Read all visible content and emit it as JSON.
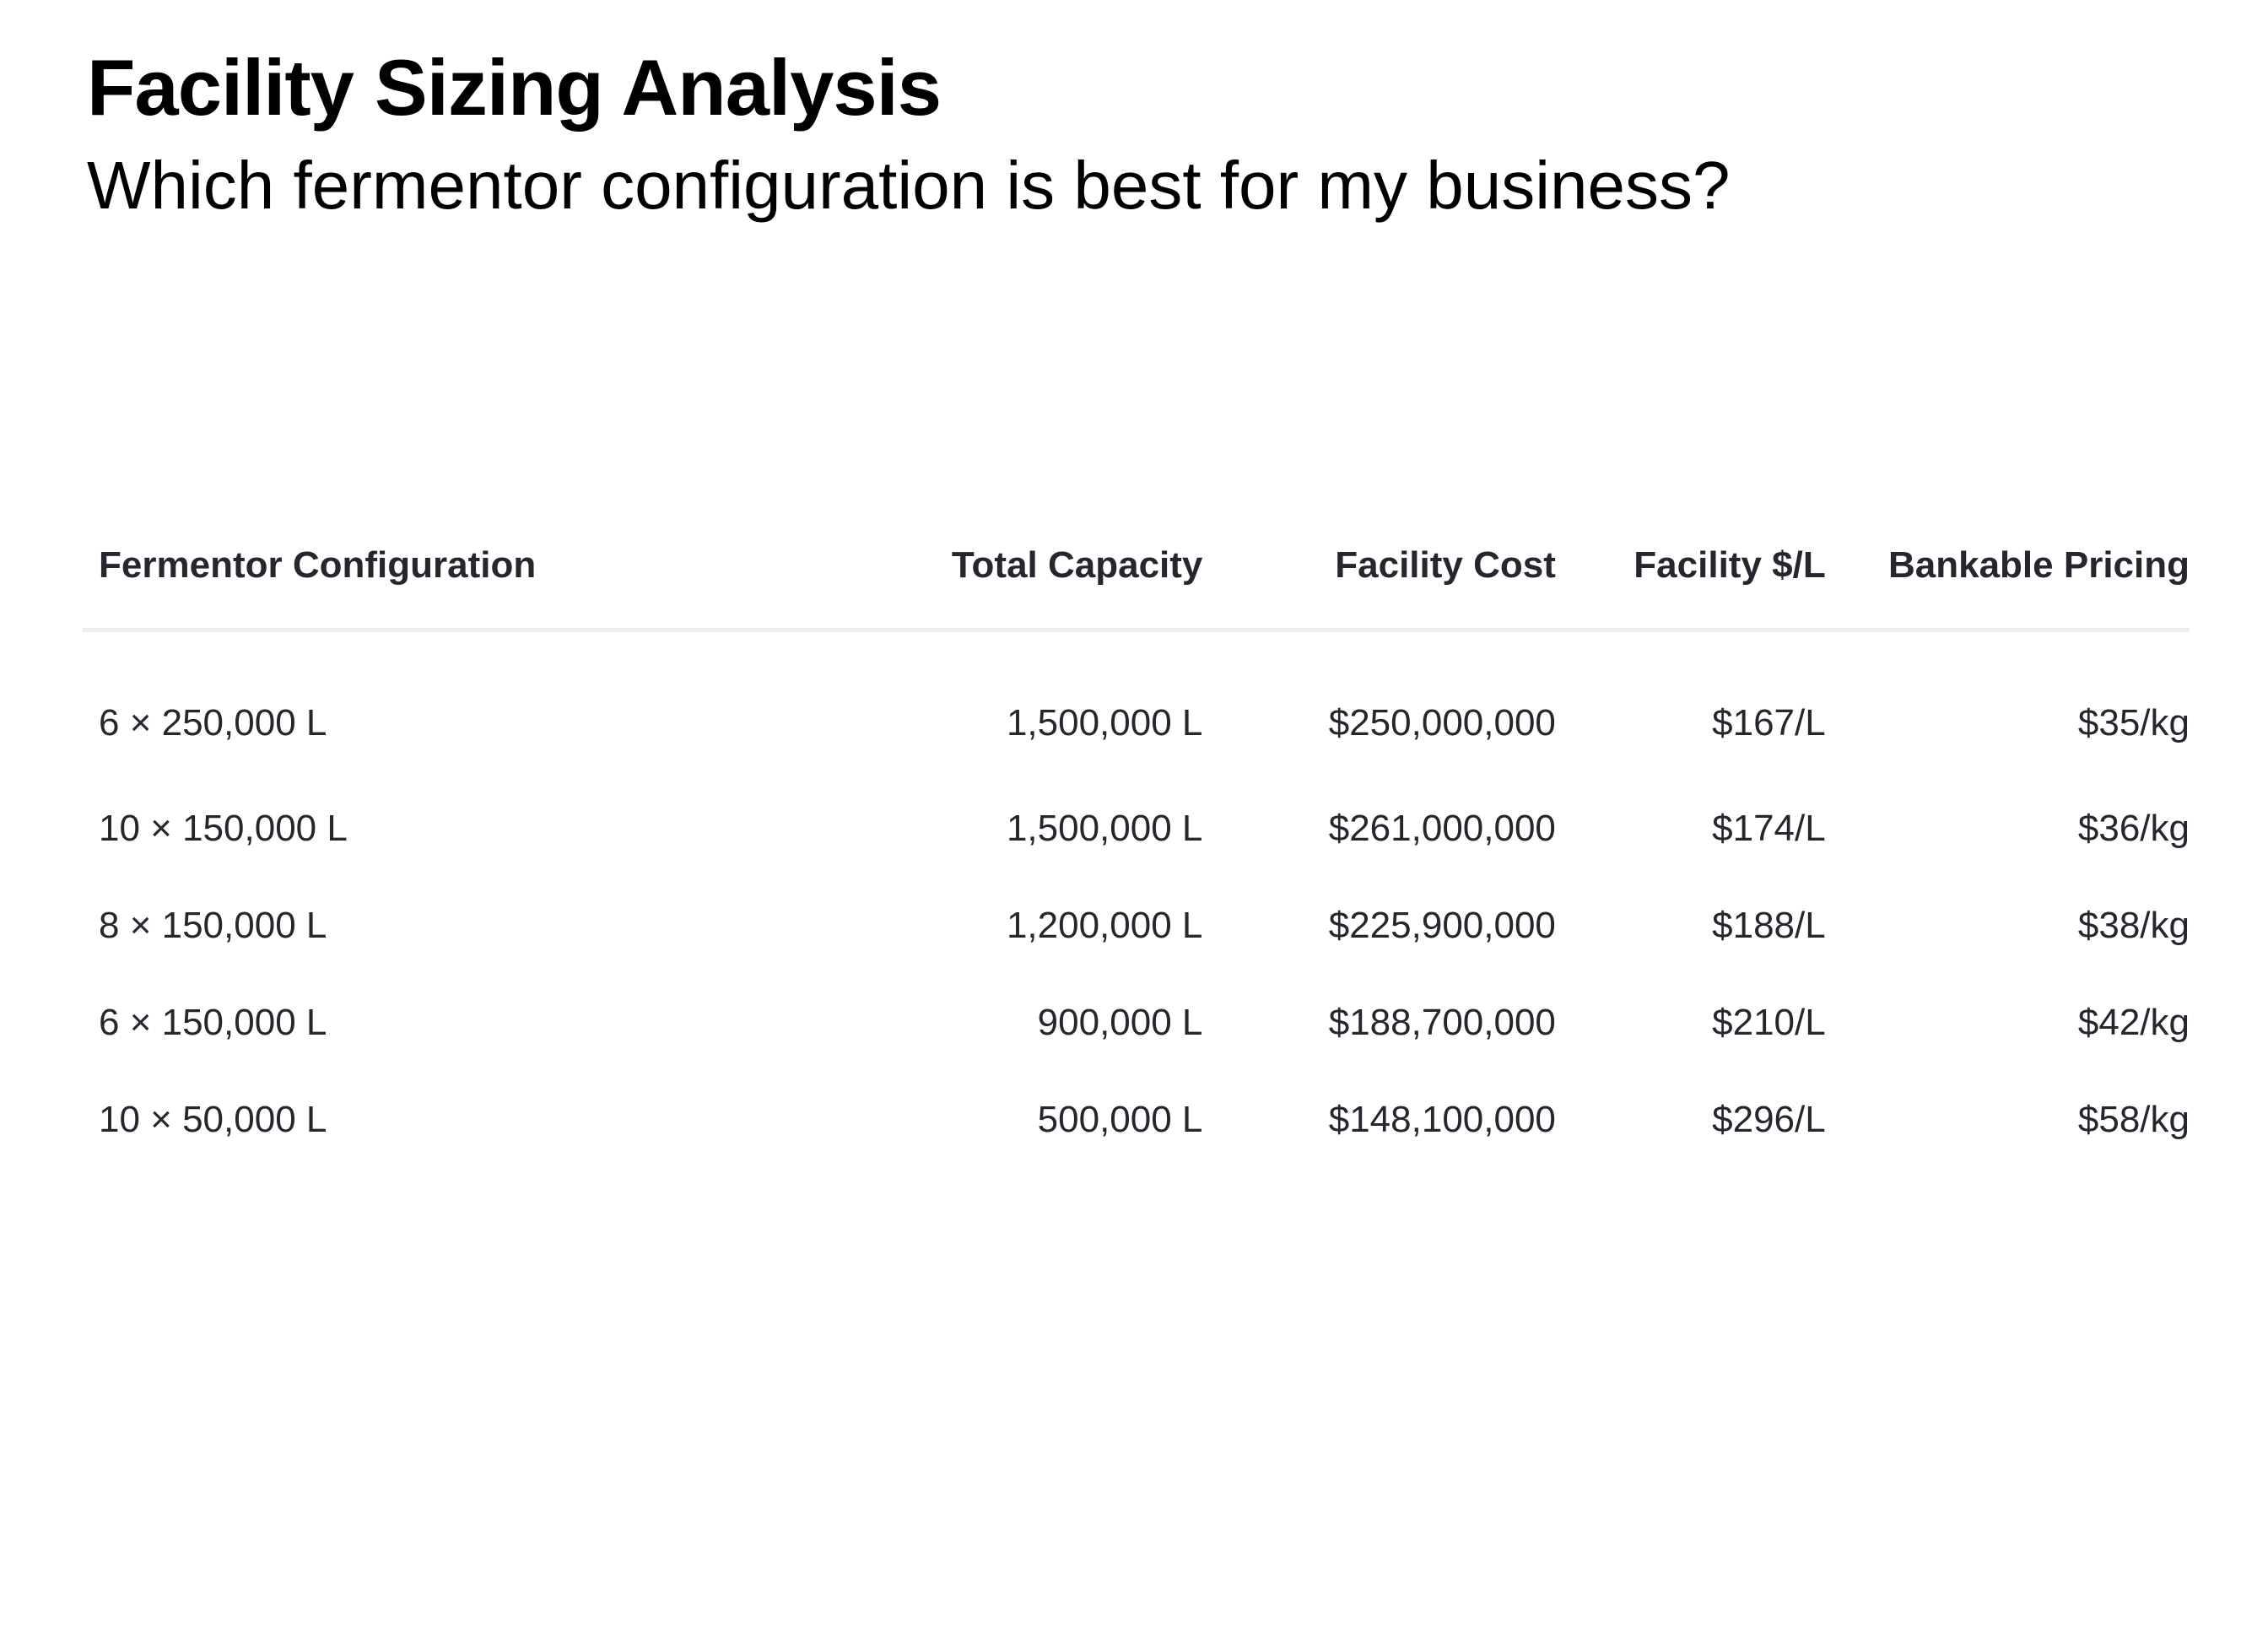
{
  "header": {
    "title": "Facility Sizing Analysis",
    "subtitle": "Which fermentor configuration is best for my business?"
  },
  "table": {
    "columns": [
      "Fermentor Configuration",
      "Total Capacity",
      "Facility Cost",
      "Facility $/L",
      "Bankable Pricing"
    ],
    "rows": [
      [
        "6 × 250,000 L",
        "1,500,000 L",
        "$250,000,000",
        "$167/L",
        "$35/kg"
      ],
      [
        "10 × 150,000 L",
        "1,500,000 L",
        "$261,000,000",
        "$174/L",
        "$36/kg"
      ],
      [
        "8 × 150,000 L",
        "1,200,000 L",
        "$225,900,000",
        "$188/L",
        "$38/kg"
      ],
      [
        "6 × 150,000 L",
        "900,000 L",
        "$188,700,000",
        "$210/L",
        "$42/kg"
      ],
      [
        "10 × 50,000 L",
        "500,000 L",
        "$148,100,000",
        "$296/L",
        "$58/kg"
      ]
    ]
  },
  "colors": {
    "text_primary": "#000000",
    "table_text": "#26262f",
    "divider": "#eeeeee",
    "background": "#ffffff"
  }
}
